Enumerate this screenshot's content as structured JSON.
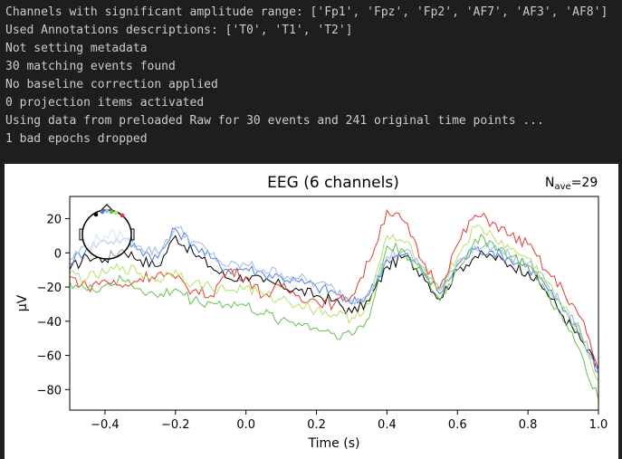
{
  "console": {
    "lines": [
      "Channels with significant amplitude range: ['Fp1', 'Fpz', 'Fp2', 'AF7', 'AF3', 'AF8']",
      "Used Annotations descriptions: ['T0', 'T1', 'T2']",
      "Not setting metadata",
      "30 matching events found",
      "No baseline correction applied",
      "0 projection items activated",
      "Using data from preloaded Raw for 30 events and 241 original time points ...",
      "1 bad epochs dropped"
    ]
  },
  "chart_data": {
    "type": "line",
    "title": "EEG (6 channels)",
    "nave_label": "N",
    "nave_sub": "ave",
    "nave_value": "=29",
    "xlabel": "Time (s)",
    "ylabel": "µV",
    "xlim": [
      -0.5,
      1.0
    ],
    "ylim": [
      -92,
      33
    ],
    "xticks": [
      -0.4,
      -0.2,
      0.0,
      0.2,
      0.4,
      0.6,
      0.8,
      1.0
    ],
    "xtick_labels": [
      "−0.4",
      "−0.2",
      "0.0",
      "0.2",
      "0.4",
      "0.6",
      "0.8",
      "1.0"
    ],
    "yticks": [
      20,
      0,
      -20,
      -40,
      -60,
      -80
    ],
    "ytick_labels": [
      "20",
      "0",
      "−20",
      "−40",
      "−60",
      "−80"
    ],
    "grid": false,
    "legend": "sensor-head inset, top-left",
    "series": [
      {
        "color": "#000000",
        "x": [
          -0.5,
          -0.45,
          -0.4,
          -0.35,
          -0.3,
          -0.25,
          -0.2,
          -0.15,
          -0.1,
          -0.05,
          0.0,
          0.05,
          0.1,
          0.15,
          0.2,
          0.25,
          0.3,
          0.35,
          0.4,
          0.45,
          0.5,
          0.55,
          0.6,
          0.65,
          0.7,
          0.75,
          0.8,
          0.85,
          0.9,
          0.95,
          1.0
        ],
        "values": [
          -10,
          -2,
          -4,
          2,
          -4,
          -8,
          10,
          0,
          -8,
          -15,
          -14,
          -17,
          -19,
          -22,
          -25,
          -28,
          -35,
          -28,
          -8,
          -2,
          -12,
          -27,
          -10,
          -2,
          -2,
          -7,
          -11,
          -22,
          -37,
          -51,
          -68
        ]
      },
      {
        "color": "#4f7fd4",
        "x": [
          -0.5,
          -0.45,
          -0.4,
          -0.35,
          -0.3,
          -0.25,
          -0.2,
          -0.15,
          -0.1,
          -0.05,
          0.0,
          0.05,
          0.1,
          0.15,
          0.2,
          0.25,
          0.3,
          0.35,
          0.4,
          0.45,
          0.5,
          0.55,
          0.6,
          0.65,
          0.7,
          0.75,
          0.8,
          0.85,
          0.9,
          0.95,
          1.0
        ],
        "values": [
          -6,
          3,
          7,
          8,
          2,
          -3,
          14,
          5,
          -3,
          -10,
          -9,
          -12,
          -14,
          -17,
          -20,
          -23,
          -30,
          -24,
          -4,
          -1,
          -10,
          -24,
          -7,
          2,
          1,
          -4,
          -8,
          -19,
          -34,
          -48,
          -70
        ]
      },
      {
        "color": "#9cb8e6",
        "x": [
          -0.5,
          -0.45,
          -0.4,
          -0.35,
          -0.3,
          -0.25,
          -0.2,
          -0.15,
          -0.1,
          -0.05,
          0.0,
          0.05,
          0.1,
          0.15,
          0.2,
          0.25,
          0.3,
          0.35,
          0.4,
          0.45,
          0.5,
          0.55,
          0.6,
          0.65,
          0.7,
          0.75,
          0.8,
          0.85,
          0.9,
          0.95,
          1.0
        ],
        "values": [
          -4,
          5,
          10,
          10,
          4,
          0,
          15,
          7,
          -1,
          -8,
          -7,
          -10,
          -12,
          -15,
          -18,
          -21,
          -28,
          -22,
          -2,
          1,
          -8,
          -22,
          -5,
          4,
          3,
          -2,
          -6,
          -17,
          -32,
          -46,
          -71
        ]
      },
      {
        "color": "#e03b2d",
        "x": [
          -0.5,
          -0.45,
          -0.4,
          -0.35,
          -0.3,
          -0.25,
          -0.2,
          -0.15,
          -0.1,
          -0.05,
          0.0,
          0.05,
          0.1,
          0.15,
          0.2,
          0.25,
          0.3,
          0.35,
          0.4,
          0.45,
          0.5,
          0.55,
          0.6,
          0.65,
          0.7,
          0.75,
          0.8,
          0.85,
          0.9,
          0.95,
          1.0
        ],
        "values": [
          -14,
          -20,
          -16,
          -20,
          -15,
          -12,
          -15,
          -22,
          -25,
          -10,
          -14,
          -25,
          -20,
          -25,
          -28,
          -30,
          -25,
          -5,
          25,
          18,
          -5,
          -20,
          5,
          22,
          18,
          10,
          5,
          -10,
          -22,
          -38,
          -68
        ]
      },
      {
        "color": "#b5e06a",
        "x": [
          -0.5,
          -0.45,
          -0.4,
          -0.35,
          -0.3,
          -0.25,
          -0.2,
          -0.15,
          -0.1,
          -0.05,
          0.0,
          0.05,
          0.1,
          0.15,
          0.2,
          0.25,
          0.3,
          0.35,
          0.4,
          0.45,
          0.5,
          0.55,
          0.6,
          0.65,
          0.7,
          0.75,
          0.8,
          0.85,
          0.9,
          0.95,
          1.0
        ],
        "values": [
          -12,
          -15,
          -12,
          -8,
          -12,
          -16,
          -10,
          -18,
          -20,
          -22,
          -20,
          -25,
          -27,
          -30,
          -33,
          -36,
          -38,
          -30,
          10,
          6,
          -8,
          -22,
          -2,
          15,
          10,
          2,
          -3,
          -16,
          -32,
          -48,
          -75
        ]
      },
      {
        "color": "#62c24a",
        "x": [
          -0.5,
          -0.45,
          -0.4,
          -0.35,
          -0.3,
          -0.25,
          -0.2,
          -0.15,
          -0.1,
          -0.05,
          0.0,
          0.05,
          0.1,
          0.15,
          0.2,
          0.25,
          0.3,
          0.35,
          0.4,
          0.45,
          0.5,
          0.55,
          0.6,
          0.65,
          0.7,
          0.75,
          0.8,
          0.85,
          0.9,
          0.95,
          1.0
        ],
        "values": [
          -17,
          -22,
          -19,
          -16,
          -21,
          -26,
          -21,
          -28,
          -29,
          -30,
          -31,
          -36,
          -39,
          -41,
          -44,
          -47,
          -48,
          -38,
          4,
          1,
          -12,
          -28,
          -10,
          8,
          6,
          -2,
          -7,
          -22,
          -40,
          -58,
          -86
        ]
      }
    ]
  },
  "head_inset": {
    "sensor_colors": [
      "#000000",
      "#4f7fd4",
      "#9cb8e6",
      "#62c24a",
      "#b5e06a",
      "#e03b2d"
    ]
  }
}
